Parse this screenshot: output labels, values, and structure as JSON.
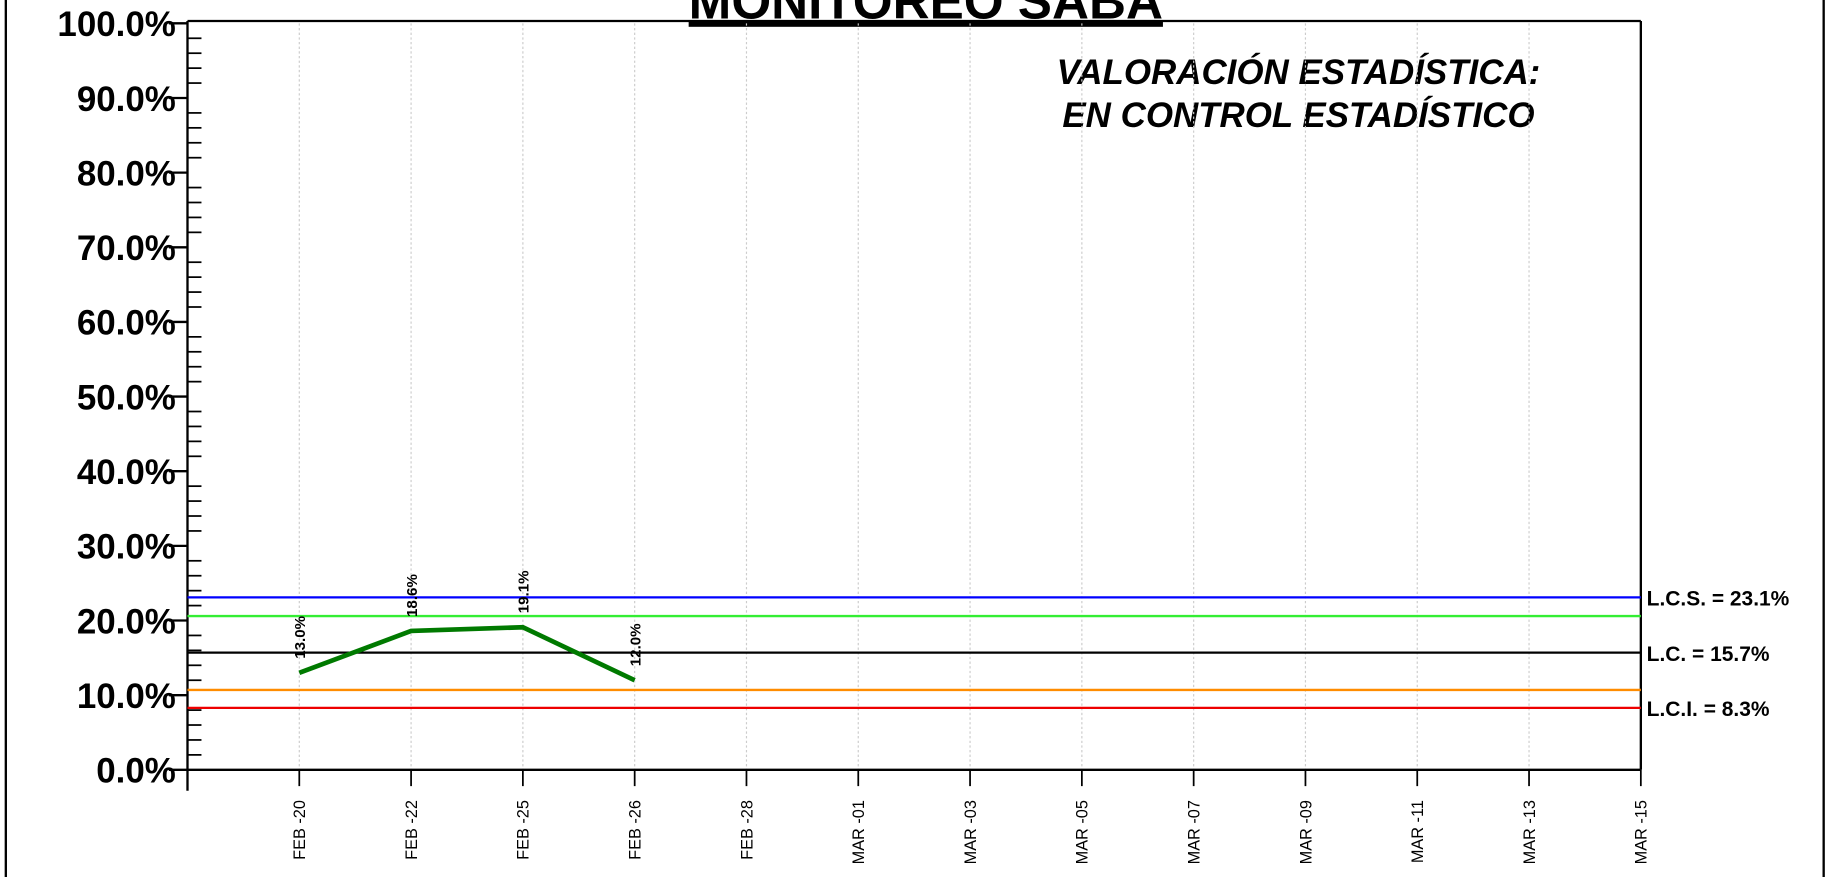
{
  "chart_data": {
    "type": "line",
    "title": "MONITOREO SABA",
    "annotations": [
      "VALORACIÓN ESTADÍSTICA:",
      "EN CONTROL ESTADÍSTICO"
    ],
    "categories": [
      "FEB -20",
      "FEB -22",
      "FEB -25",
      "FEB -26",
      "FEB -28",
      "MAR -01",
      "MAR -03",
      "MAR -05",
      "MAR -07",
      "MAR -09",
      "MAR -11",
      "MAR -13",
      "MAR -15"
    ],
    "series": [
      {
        "color": "#007a00",
        "values": [
          13.0,
          18.6,
          19.1,
          12.0,
          null,
          null,
          null,
          null,
          null,
          null,
          null,
          null,
          null
        ],
        "value_labels": [
          "13.0%",
          "18.6%",
          "19.1%",
          "12.0%",
          null,
          null,
          null,
          null,
          null,
          null,
          null,
          null,
          null
        ]
      }
    ],
    "limits": [
      {
        "label": "L.C.S. = 23.1%",
        "value": 23.1,
        "color": "#0000ff"
      },
      {
        "value": 20.6,
        "color": "#33ee33"
      },
      {
        "label": "L.C. = 15.7%",
        "value": 15.7,
        "color": "#000000"
      },
      {
        "value": 10.7,
        "color": "#ff8c00"
      },
      {
        "label": "L.C.I. = 8.3%",
        "value": 8.3,
        "color": "#ee0000"
      }
    ],
    "ylim": [
      0,
      100
    ],
    "yticks": [
      {
        "value": 0,
        "label": "0.0%"
      },
      {
        "value": 10,
        "label": "10.0%"
      },
      {
        "value": 20,
        "label": "20.0%"
      },
      {
        "value": 30,
        "label": "30.0%"
      },
      {
        "value": 40,
        "label": "40.0%"
      },
      {
        "value": 50,
        "label": "50.0%"
      },
      {
        "value": 60,
        "label": "60.0%"
      },
      {
        "value": 70,
        "label": "70.0%"
      },
      {
        "value": 80,
        "label": "80.0%"
      },
      {
        "value": 90,
        "label": "90.0%"
      },
      {
        "value": 100,
        "label": "100.0%"
      }
    ],
    "yminorticks": [
      2,
      4,
      6,
      8,
      12,
      14,
      16,
      18,
      22,
      24,
      26,
      28,
      32,
      34,
      36,
      38,
      42,
      44,
      46,
      48,
      52,
      54,
      56,
      58,
      62,
      64,
      66,
      68,
      72,
      74,
      76,
      78,
      82,
      84,
      86,
      88,
      92,
      94,
      96,
      98
    ],
    "grid": true
  }
}
